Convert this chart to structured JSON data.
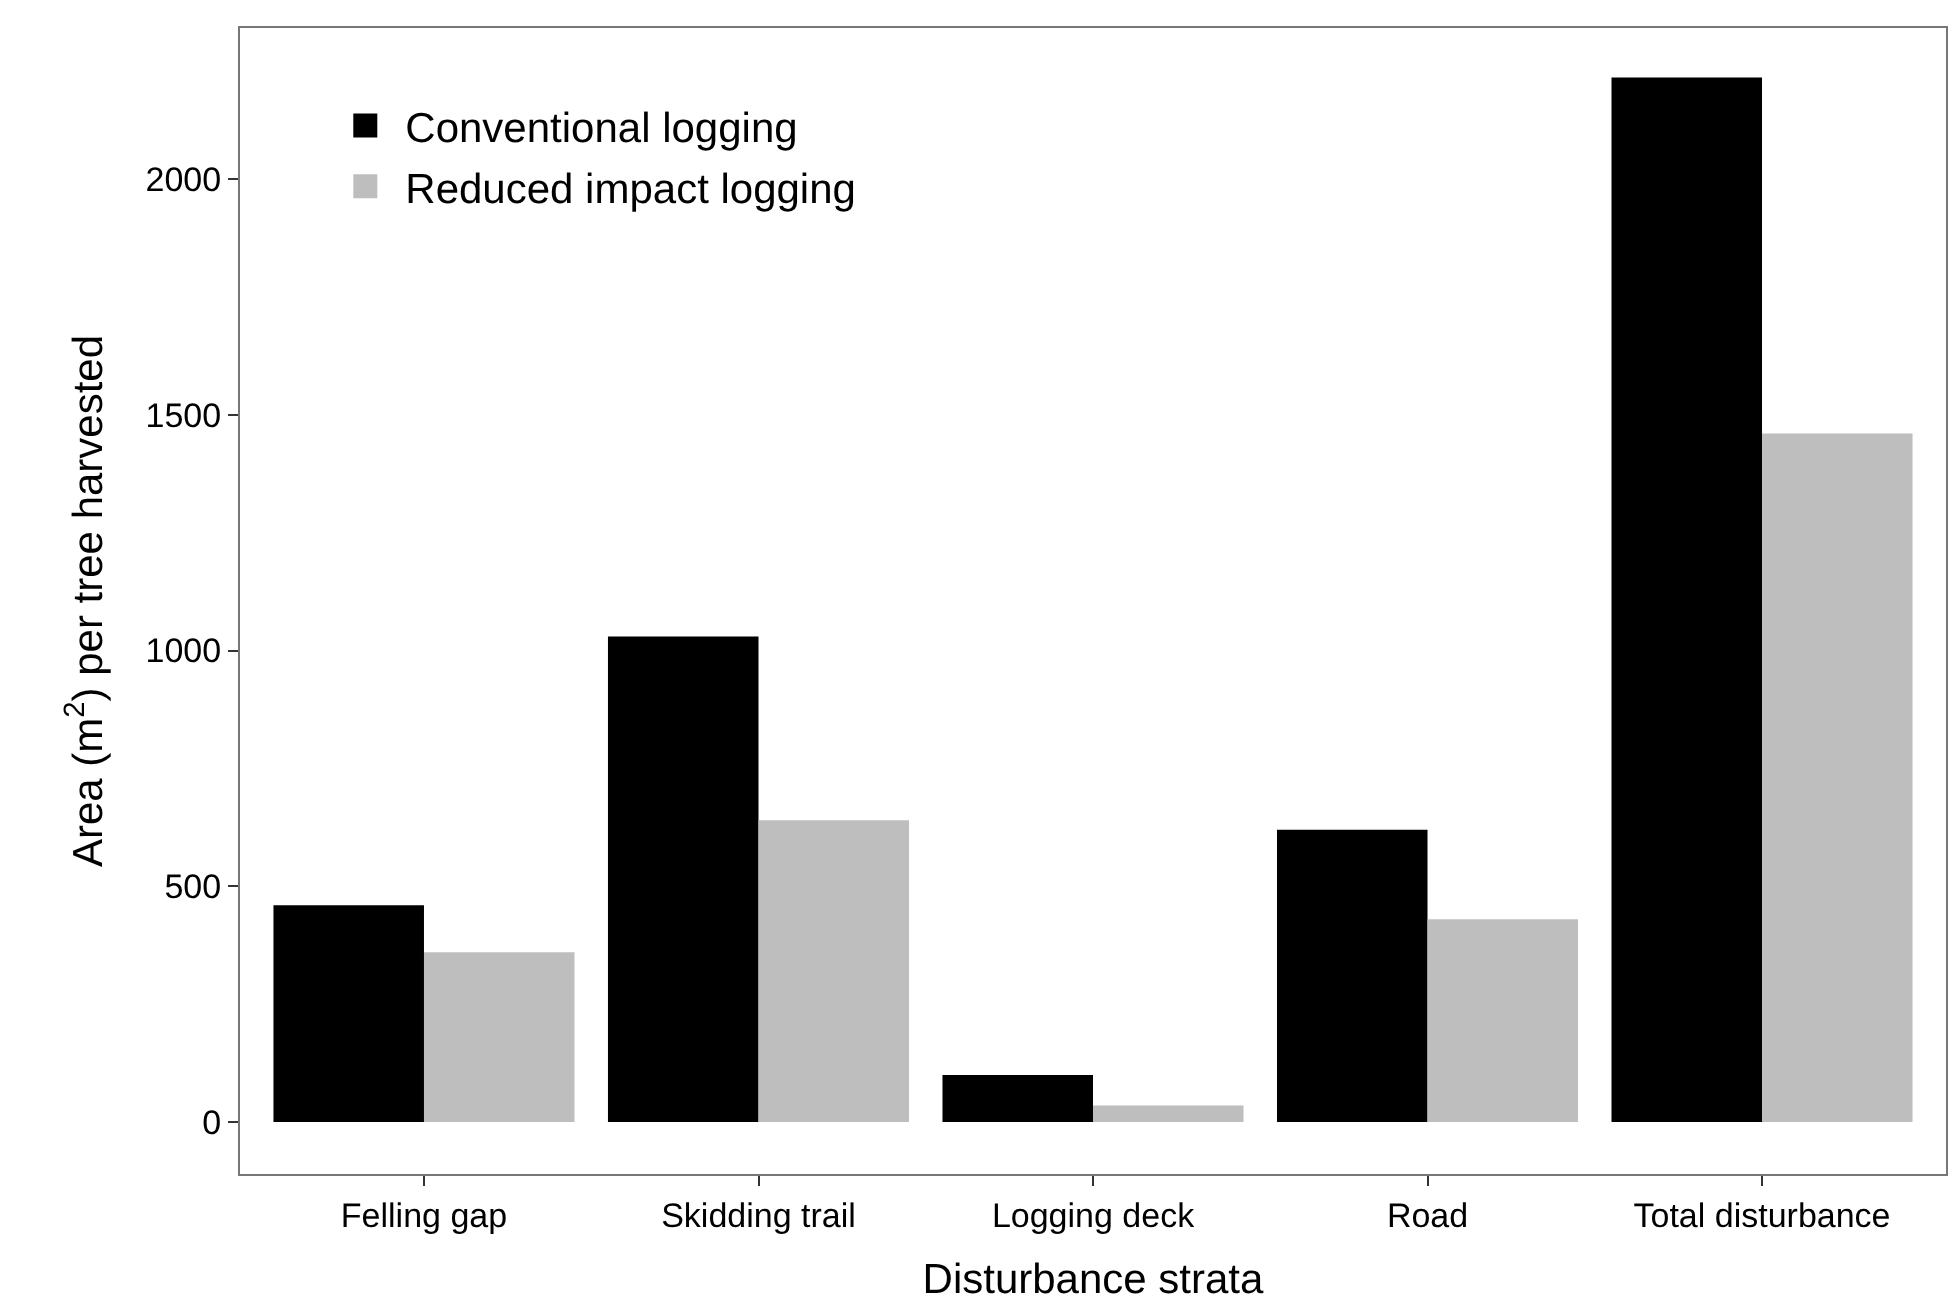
{
  "chart_data": {
    "type": "bar",
    "xlabel": "Disturbance strata",
    "ylabel": "Area (m$^{2}$) per tree harvested",
    "categories": [
      "Felling gap",
      "Skidding trail",
      "Logging deck",
      "Road",
      "Total disturbance"
    ],
    "series": [
      {
        "name": "Conventional logging",
        "color": "#000000",
        "values": [
          460,
          1030,
          100,
          620,
          2215
        ]
      },
      {
        "name": "Reduced impact logging",
        "color": "#bebebe",
        "values": [
          360,
          640,
          35,
          430,
          1460
        ]
      }
    ],
    "ylim": [
      -110,
      2320
    ],
    "yticks": [
      0,
      500,
      1000,
      1500,
      2000
    ],
    "legend": "top left"
  }
}
